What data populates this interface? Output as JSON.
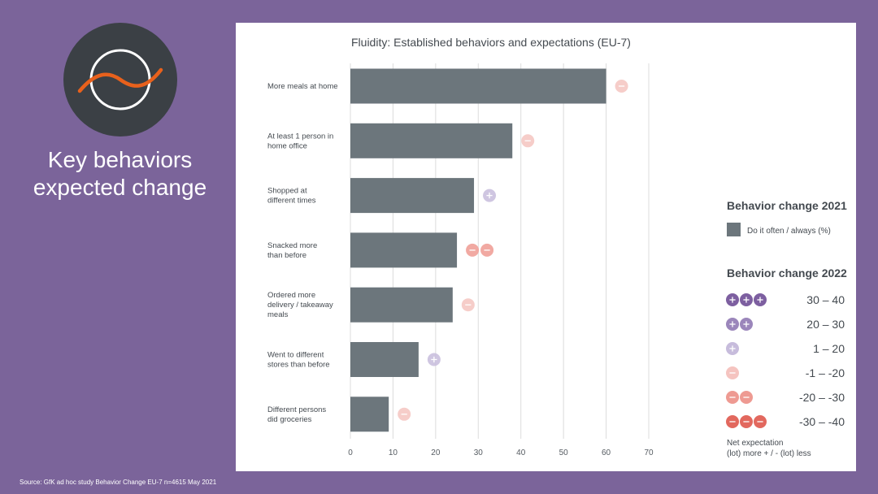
{
  "slide": {
    "title_line1": "Key behaviors",
    "title_line2": "expected change",
    "source": "Source: GfK ad hoc study Behavior Change EU-7 n=4615 May 2021",
    "colors": {
      "background": "#7b649a",
      "logo_circle": "#3b4045",
      "logo_wave": "#e8611c",
      "bar": "#6c767c"
    },
    "logo_icon": "wave-circle-icon"
  },
  "chart_data": {
    "type": "bar",
    "orientation": "horizontal",
    "title": "Fluidity: Established behaviors and expectations (EU-7)",
    "categories": [
      [
        "More meals at home"
      ],
      [
        "At least 1 person in",
        "home office"
      ],
      [
        "Shopped at",
        "different times"
      ],
      [
        "Snacked more",
        "than before"
      ],
      [
        "Ordered more",
        "delivery / takeaway",
        "meals"
      ],
      [
        "Went to different",
        "stores than before"
      ],
      [
        "Different persons",
        "did groceries"
      ]
    ],
    "values": [
      60,
      38,
      29,
      25,
      24,
      16,
      9
    ],
    "series_name": "Do it often / always (%)",
    "expectations": [
      {
        "count": 1,
        "sign": "-"
      },
      {
        "count": 1,
        "sign": "-"
      },
      {
        "count": 1,
        "sign": "+"
      },
      {
        "count": 2,
        "sign": "-"
      },
      {
        "count": 1,
        "sign": "-"
      },
      {
        "count": 1,
        "sign": "+"
      },
      {
        "count": 1,
        "sign": "-"
      }
    ],
    "xlim": [
      0,
      70
    ],
    "xticks": [
      0,
      10,
      20,
      30,
      40,
      50,
      60,
      70
    ],
    "grid": true,
    "legend": {
      "title_2021": "Behavior change 2021",
      "title_2022": "Behavior change 2022",
      "ranges": [
        {
          "label": "30 – 40",
          "count": 3,
          "sign": "+",
          "color": "#7d5fa0"
        },
        {
          "label": "20 – 30",
          "count": 2,
          "sign": "+",
          "color": "#9b86bb"
        },
        {
          "label": "1 – 20",
          "count": 1,
          "sign": "+",
          "color": "#c7bcdc"
        },
        {
          "label": "-1 – -20",
          "count": 1,
          "sign": "-",
          "color": "#f5c4c0"
        },
        {
          "label": "-20 – -30",
          "count": 2,
          "sign": "-",
          "color": "#ee9a92"
        },
        {
          "label": "-30 – -40",
          "count": 3,
          "sign": "-",
          "color": "#e2685e"
        }
      ],
      "note_line1": "Net expectation",
      "note_line2": "(lot) more + / - (lot) less"
    }
  }
}
